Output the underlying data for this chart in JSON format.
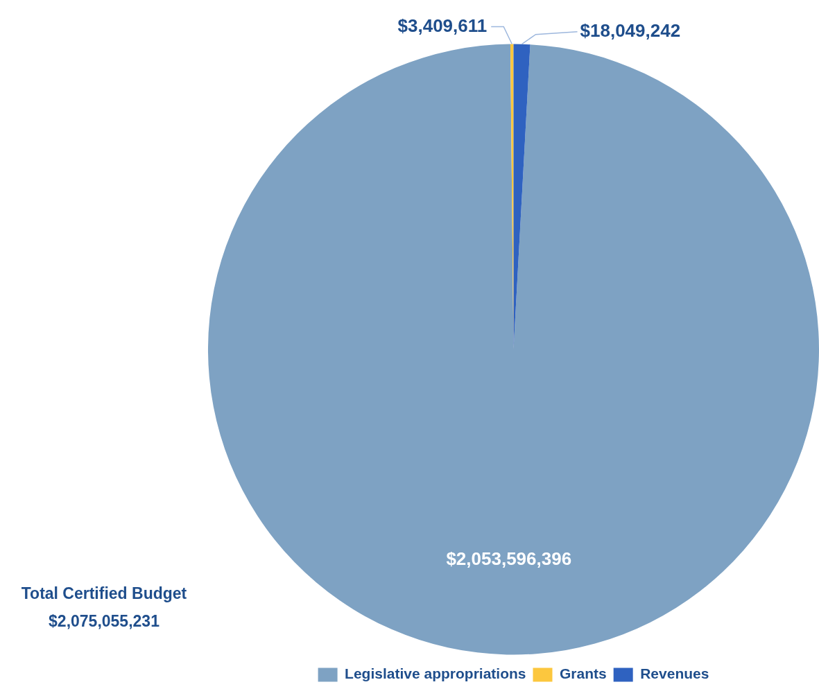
{
  "chart_data": {
    "type": "pie",
    "categories": [
      "Legislative appropriations",
      "Grants",
      "Revenues"
    ],
    "values": [
      2053596396,
      3409611,
      18049242
    ],
    "colors": [
      "#7ea2c3",
      "#fcc73e",
      "#2f62c0"
    ],
    "value_labels": [
      "$2,053,596,396",
      "$3,409,611",
      "$18,049,242"
    ],
    "legend": "bottom",
    "annotations": [
      "Total Certified Budget",
      "$2,075,055,231"
    ]
  }
}
